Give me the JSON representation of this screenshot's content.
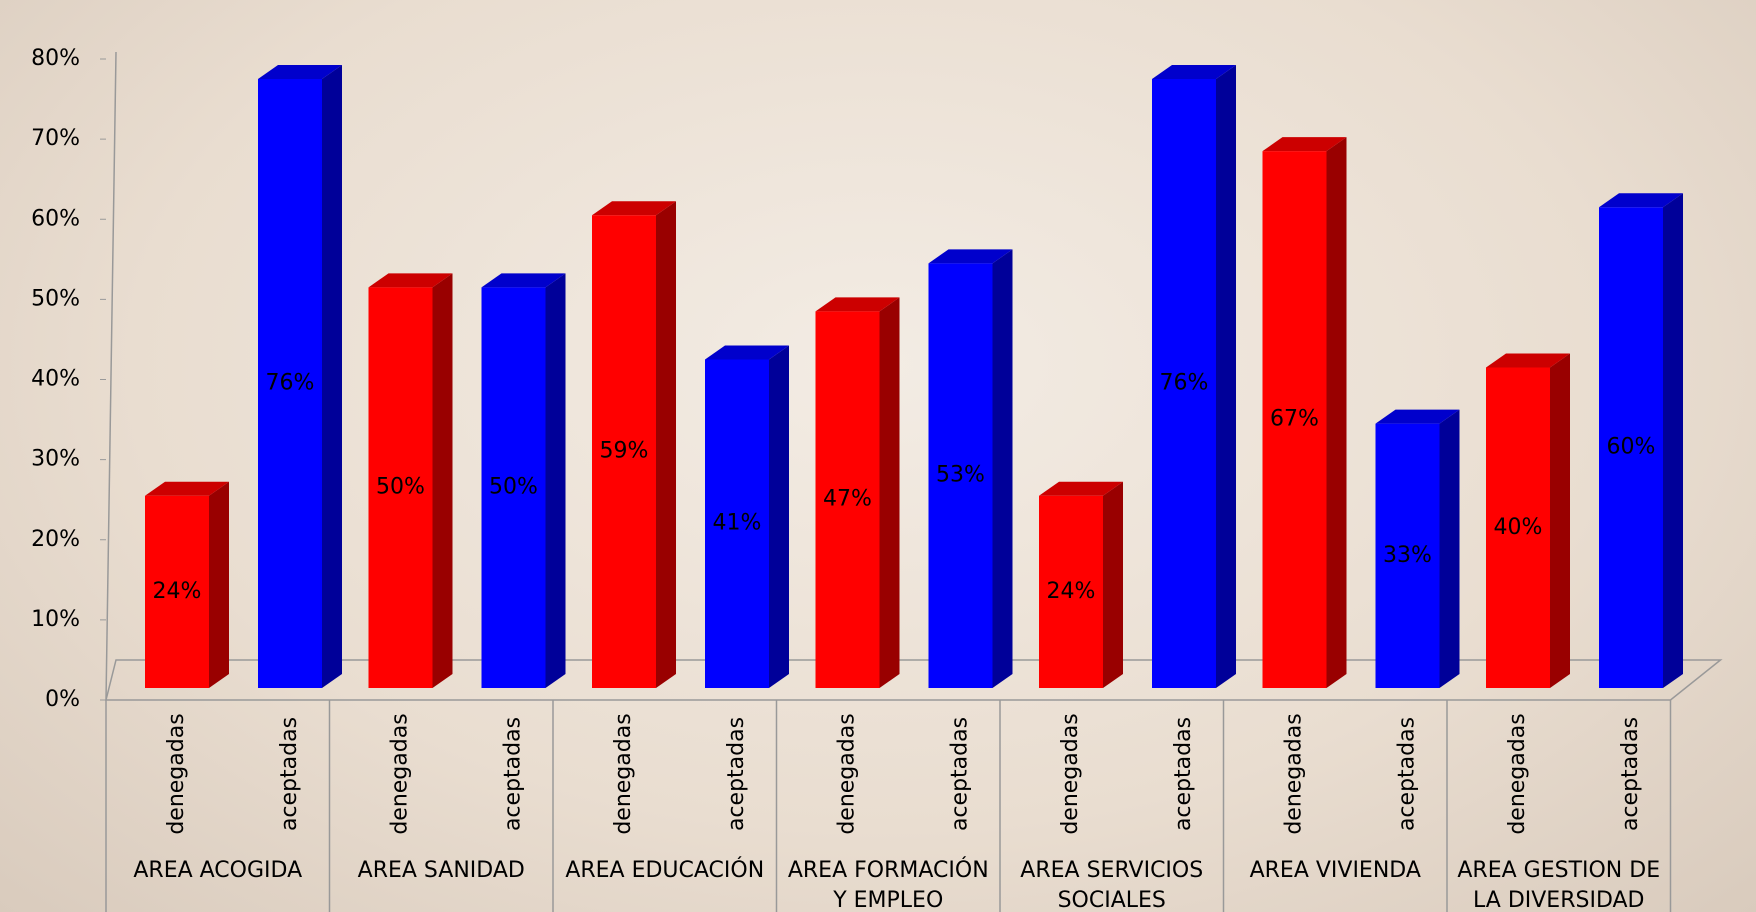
{
  "chart_data": {
    "type": "bar3d",
    "categories": [
      "AREA ACOGIDA",
      "AREA SANIDAD",
      "AREA EDUCACIÓN",
      "AREA FORMACIÓN Y EMPLEO",
      "AREA SERVICIOS SOCIALES",
      "AREA VIVIENDA",
      "AREA GESTION DE LA DIVERSIDAD"
    ],
    "series": [
      {
        "name": "denegadas",
        "color": "#ff0000",
        "values": [
          24,
          50,
          59,
          47,
          24,
          67,
          40
        ],
        "value_labels": [
          "24%",
          "50%",
          "59%",
          "47%",
          "24%",
          "67%",
          "40%"
        ]
      },
      {
        "name": "aceptadas",
        "color": "#0000ff",
        "values": [
          76,
          50,
          41,
          53,
          76,
          33,
          60
        ],
        "value_labels": [
          "76%",
          "50%",
          "41%",
          "53%",
          "76%",
          "33%",
          "60%"
        ]
      }
    ],
    "ylim": [
      0,
      80
    ],
    "yticks": [
      {
        "value": 0,
        "label": "0%"
      },
      {
        "value": 10,
        "label": "10%"
      },
      {
        "value": 20,
        "label": "20%"
      },
      {
        "value": 30,
        "label": "30%"
      },
      {
        "value": 40,
        "label": "40%"
      },
      {
        "value": 50,
        "label": "50%"
      },
      {
        "value": 60,
        "label": "60%"
      },
      {
        "value": 70,
        "label": "70%"
      },
      {
        "value": 80,
        "label": "80%"
      }
    ],
    "grid": false
  }
}
